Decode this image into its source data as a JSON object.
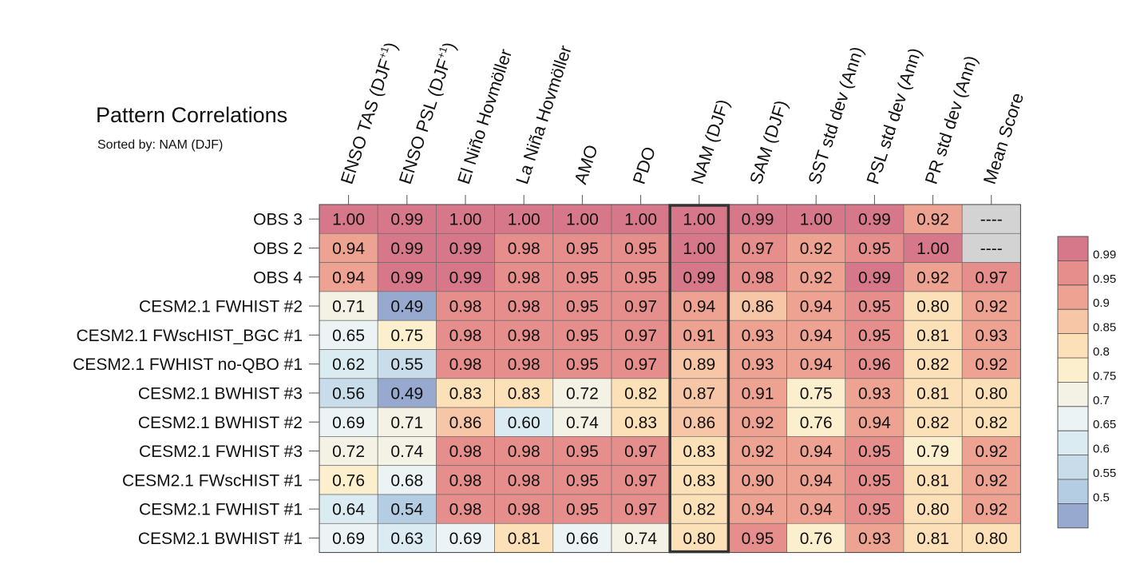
{
  "chart_data": {
    "type": "heatmap",
    "title": "Pattern Correlations",
    "subtitle": "Sorted by: NAM (DJF)",
    "highlighted_column": "NAM (DJF)",
    "columns": [
      "ENSO TAS (DJF+1)",
      "ENSO PSL (DJF+1)",
      "El Niño Hovmöller",
      "La Niña Hovmöller",
      "AMO",
      "PDO",
      "NAM (DJF)",
      "SAM (DJF)",
      "SST std dev (Ann)",
      "PSL std dev (Ann)",
      "PR std dev (Ann)",
      "Mean Score"
    ],
    "column_labels": [
      {
        "text": "ENSO TAS (DJF",
        "sup": "+1",
        "suffix": ")"
      },
      {
        "text": "ENSO PSL (DJF",
        "sup": "+1",
        "suffix": ")"
      },
      {
        "text": "El Niño Hovmöller",
        "sup": "",
        "suffix": ""
      },
      {
        "text": "La Niña Hovmöller",
        "sup": "",
        "suffix": ""
      },
      {
        "text": "AMO",
        "sup": "",
        "suffix": ""
      },
      {
        "text": "PDO",
        "sup": "",
        "suffix": ""
      },
      {
        "text": "NAM (DJF)",
        "sup": "",
        "suffix": ""
      },
      {
        "text": "SAM (DJF)",
        "sup": "",
        "suffix": ""
      },
      {
        "text": "SST std dev (Ann)",
        "sup": "",
        "suffix": ""
      },
      {
        "text": "PSL std dev (Ann)",
        "sup": "",
        "suffix": ""
      },
      {
        "text": "PR std dev (Ann)",
        "sup": "",
        "suffix": ""
      },
      {
        "text": "Mean Score",
        "sup": "",
        "suffix": ""
      }
    ],
    "rows": [
      "OBS 3",
      "OBS 2",
      "OBS 4",
      "CESM2.1 FWHIST #2",
      "CESM2.1 FWscHIST_BGC #1",
      "CESM2.1 FWHIST no-QBO #1",
      "CESM2.1 BWHIST #3",
      "CESM2.1 BWHIST #2",
      "CESM2.1 FWHIST #3",
      "CESM2.1 FWscHIST #1",
      "CESM2.1 FWHIST #1",
      "CESM2.1 BWHIST #1"
    ],
    "values": [
      [
        "1.00",
        "0.99",
        "1.00",
        "1.00",
        "1.00",
        "1.00",
        "1.00",
        "0.99",
        "1.00",
        "0.99",
        "0.92",
        "----"
      ],
      [
        "0.94",
        "0.99",
        "0.99",
        "0.98",
        "0.95",
        "0.95",
        "1.00",
        "0.97",
        "0.92",
        "0.95",
        "1.00",
        "----"
      ],
      [
        "0.94",
        "0.99",
        "0.99",
        "0.98",
        "0.95",
        "0.95",
        "0.99",
        "0.98",
        "0.92",
        "0.99",
        "0.92",
        "0.97"
      ],
      [
        "0.71",
        "0.49",
        "0.98",
        "0.98",
        "0.95",
        "0.97",
        "0.94",
        "0.86",
        "0.94",
        "0.95",
        "0.80",
        "0.92"
      ],
      [
        "0.65",
        "0.75",
        "0.98",
        "0.98",
        "0.95",
        "0.97",
        "0.91",
        "0.93",
        "0.94",
        "0.95",
        "0.81",
        "0.93"
      ],
      [
        "0.62",
        "0.55",
        "0.98",
        "0.98",
        "0.95",
        "0.97",
        "0.89",
        "0.93",
        "0.94",
        "0.96",
        "0.82",
        "0.92"
      ],
      [
        "0.56",
        "0.49",
        "0.83",
        "0.83",
        "0.72",
        "0.82",
        "0.87",
        "0.91",
        "0.75",
        "0.93",
        "0.81",
        "0.80"
      ],
      [
        "0.69",
        "0.71",
        "0.86",
        "0.60",
        "0.74",
        "0.83",
        "0.86",
        "0.92",
        "0.76",
        "0.94",
        "0.82",
        "0.82"
      ],
      [
        "0.72",
        "0.74",
        "0.98",
        "0.98",
        "0.95",
        "0.97",
        "0.83",
        "0.92",
        "0.94",
        "0.95",
        "0.79",
        "0.92"
      ],
      [
        "0.76",
        "0.68",
        "0.98",
        "0.98",
        "0.95",
        "0.97",
        "0.83",
        "0.90",
        "0.94",
        "0.95",
        "0.81",
        "0.92"
      ],
      [
        "0.64",
        "0.54",
        "0.98",
        "0.98",
        "0.95",
        "0.97",
        "0.82",
        "0.94",
        "0.94",
        "0.95",
        "0.80",
        "0.92"
      ],
      [
        "0.69",
        "0.63",
        "0.69",
        "0.81",
        "0.66",
        "0.74",
        "0.80",
        "0.95",
        "0.76",
        "0.93",
        "0.81",
        "0.80"
      ]
    ],
    "missing_symbol": "----",
    "colorbar": {
      "ticks": [
        "0.99",
        "0.95",
        "0.9",
        "0.85",
        "0.8",
        "0.75",
        "0.7",
        "0.65",
        "0.6",
        "0.55",
        "0.5"
      ],
      "bounds": [
        0.5,
        0.55,
        0.6,
        0.65,
        0.7,
        0.75,
        0.8,
        0.85,
        0.9,
        0.95,
        0.99
      ],
      "colors_low_to_high": [
        "#98a9cf",
        "#b5cde2",
        "#c8dde9",
        "#dbebf2",
        "#ebf3f4",
        "#f3f2e4",
        "#fcefcd",
        "#fce0b8",
        "#f7c6a7",
        "#eea292",
        "#e58e8c",
        "#d6788a"
      ]
    },
    "missing_color": "#d3d3d3"
  }
}
